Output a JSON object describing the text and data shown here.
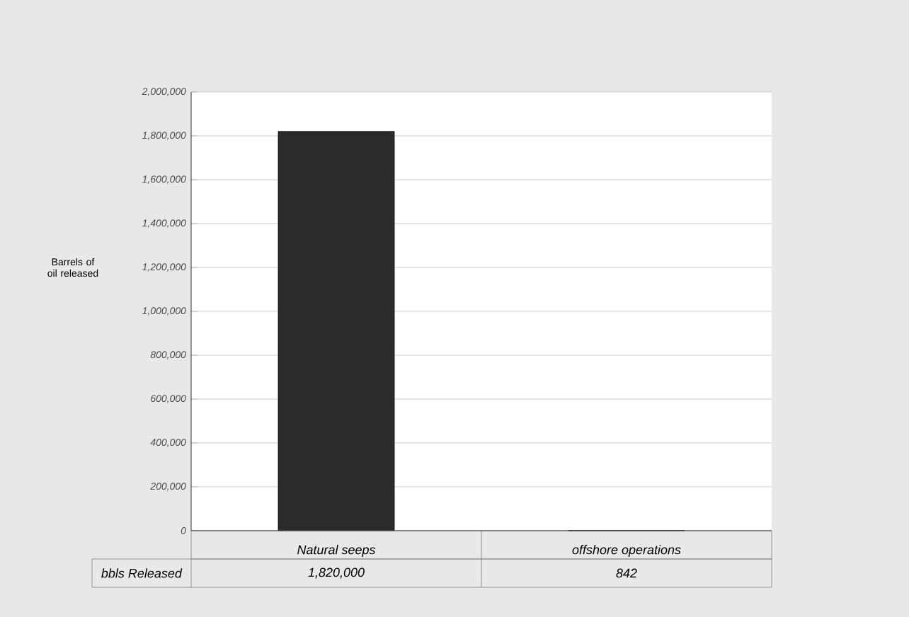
{
  "chart_data": {
    "type": "bar",
    "ylabel": "Barrels of oil released",
    "categories": [
      "Natural seeps",
      "offshore operations"
    ],
    "series": [
      {
        "name": "bbls Released",
        "color": "#2b2b2b",
        "values": [
          1820000,
          842
        ],
        "value_labels": [
          "1,820,000",
          "842"
        ]
      }
    ],
    "ylim": [
      0,
      2000000
    ],
    "yticks": [
      {
        "value": 0,
        "label": "0"
      },
      {
        "value": 200000,
        "label": "200,000"
      },
      {
        "value": 400000,
        "label": "400,000"
      },
      {
        "value": 600000,
        "label": "600,000"
      },
      {
        "value": 800000,
        "label": "800,000"
      },
      {
        "value": 1000000,
        "label": "1,000,000"
      },
      {
        "value": 1200000,
        "label": "1,200,000"
      },
      {
        "value": 1400000,
        "label": "1,400,000"
      },
      {
        "value": 1600000,
        "label": "1,600,000"
      },
      {
        "value": 1800000,
        "label": "1,800,000"
      },
      {
        "value": 2000000,
        "label": "2,000,000"
      }
    ],
    "grid": "y",
    "legend": false
  }
}
